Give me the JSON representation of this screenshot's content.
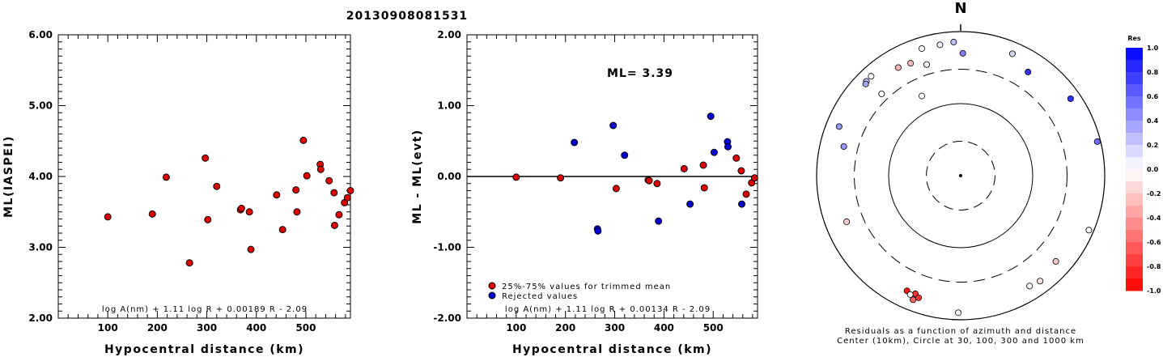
{
  "event_id": "20130908081531",
  "north_label": "N",
  "chart_data": [
    {
      "type": "scatter",
      "ylabel": "ML(IASPEI)",
      "xlabel": "Hypocentral distance (km)",
      "xlim": [
        0,
        590
      ],
      "ylim": [
        2.0,
        6.0
      ],
      "xticks": [
        100,
        200,
        300,
        400,
        500
      ],
      "ytick_labels": [
        "2.00",
        "3.00",
        "4.00",
        "5.00",
        "6.00"
      ],
      "formula": "log A(nm) + 1.11 log R + 0.00189 R - 2.09",
      "series": [
        {
          "color": "#e00000",
          "points": [
            [
              100,
              3.43
            ],
            [
              190,
              3.47
            ],
            [
              218,
              3.99
            ],
            [
              265,
              2.78
            ],
            [
              297,
              4.26
            ],
            [
              302,
              3.39
            ],
            [
              320,
              3.86
            ],
            [
              368,
              3.53
            ],
            [
              370,
              3.55
            ],
            [
              386,
              3.5
            ],
            [
              389,
              2.97
            ],
            [
              441,
              3.74
            ],
            [
              453,
              3.25
            ],
            [
              480,
              3.81
            ],
            [
              482,
              3.5
            ],
            [
              495,
              4.51
            ],
            [
              502,
              4.01
            ],
            [
              529,
              4.17
            ],
            [
              530,
              4.1
            ],
            [
              547,
              3.94
            ],
            [
              558,
              3.31
            ],
            [
              557,
              3.77
            ],
            [
              567,
              3.46
            ],
            [
              578,
              3.63
            ],
            [
              584,
              3.7
            ],
            [
              592,
              3.8
            ]
          ]
        }
      ]
    },
    {
      "type": "scatter",
      "ylabel": "ML - ML(evt)",
      "xlabel": "Hypocentral distance (km)",
      "xlim": [
        0,
        590
      ],
      "ylim": [
        -2.0,
        2.0
      ],
      "xticks": [
        100,
        200,
        300,
        400,
        500
      ],
      "ytick_labels": [
        "-2.00",
        "-1.00",
        "0.00",
        "1.00",
        "2.00"
      ],
      "ml_label": "ML= 3.39",
      "formula": "log A(nm) + 1.11 log R + 0.00134 R - 2.09",
      "legend": [
        {
          "label": "25%-75% values for trimmed mean",
          "color": "#e00000"
        },
        {
          "label": "Rejected values",
          "color": "#0000d0"
        }
      ],
      "series": [
        {
          "name": "25%-75% values for trimmed mean",
          "color": "#e00000",
          "points": [
            [
              100,
              -0.01
            ],
            [
              190,
              -0.02
            ],
            [
              303,
              -0.17
            ],
            [
              368,
              -0.05
            ],
            [
              370,
              -0.06
            ],
            [
              386,
              -0.1
            ],
            [
              441,
              0.11
            ],
            [
              480,
              0.16
            ],
            [
              482,
              -0.16
            ],
            [
              547,
              0.26
            ],
            [
              557,
              0.08
            ],
            [
              567,
              -0.25
            ],
            [
              578,
              -0.09
            ],
            [
              584,
              -0.02
            ]
          ]
        },
        {
          "name": "Rejected values",
          "color": "#0000d0",
          "points": [
            [
              218,
              0.48
            ],
            [
              265,
              -0.74
            ],
            [
              266,
              -0.77
            ],
            [
              297,
              0.72
            ],
            [
              320,
              0.3
            ],
            [
              389,
              -0.63
            ],
            [
              453,
              -0.39
            ],
            [
              495,
              0.85
            ],
            [
              502,
              0.34
            ],
            [
              529,
              0.49
            ],
            [
              530,
              0.42
            ],
            [
              558,
              -0.39
            ]
          ]
        }
      ]
    },
    {
      "type": "polar",
      "caption_line1": "Residuals as a function of azimuth and distance",
      "caption_line2": "Center (10km), Circle at 30, 100, 300 and 1000 km",
      "colorbar_title": "Res",
      "colorbar_ticks": [
        "1.0",
        "0.8",
        "0.6",
        "0.4",
        "0.2",
        "0.0",
        "-0.2",
        "-0.4",
        "-0.6",
        "-0.8",
        "-1.0"
      ],
      "points": [
        {
          "az": 343,
          "dist_km": 700,
          "res": 0.0
        },
        {
          "az": 351,
          "dist_km": 690,
          "res": 0.05
        },
        {
          "az": 357,
          "dist_km": 720,
          "res": 0.25
        },
        {
          "az": 1,
          "dist_km": 500,
          "res": 0.5
        },
        {
          "az": 23,
          "dist_km": 690,
          "res": 0.15
        },
        {
          "az": 33,
          "dist_km": 520,
          "res": 0.8
        },
        {
          "az": 55,
          "dist_km": 730,
          "res": 0.8
        },
        {
          "az": 76,
          "dist_km": 900,
          "res": 0.55
        },
        {
          "az": 330,
          "dist_km": 540,
          "res": -0.3
        },
        {
          "az": 336,
          "dist_km": 510,
          "res": -0.25
        },
        {
          "az": 343,
          "dist_km": 410,
          "res": -0.05
        },
        {
          "az": 318,
          "dist_km": 720,
          "res": 0.0
        },
        {
          "az": 315,
          "dist_km": 710,
          "res": 0.25
        },
        {
          "az": 314,
          "dist_km": 680,
          "res": 0.35
        },
        {
          "az": 316,
          "dist_km": 380,
          "res": 0.0
        },
        {
          "az": 334,
          "dist_km": 170,
          "res": 0.0
        },
        {
          "az": 292,
          "dist_km": 660,
          "res": 0.4
        },
        {
          "az": 284,
          "dist_km": 470,
          "res": 0.4
        },
        {
          "az": 248,
          "dist_km": 510,
          "res": -0.2
        },
        {
          "az": 205,
          "dist_km": 580,
          "res": -0.9
        },
        {
          "az": 201,
          "dist_km": 570,
          "res": -0.8
        },
        {
          "az": 203,
          "dist_km": 620,
          "res": 0.0
        },
        {
          "az": 199,
          "dist_km": 620,
          "res": -0.8
        },
        {
          "az": 201,
          "dist_km": 700,
          "res": -0.6
        },
        {
          "az": 181,
          "dist_km": 800,
          "res": 0.0
        },
        {
          "az": 132,
          "dist_km": 600,
          "res": -0.2
        },
        {
          "az": 113,
          "dist_km": 860,
          "res": 0.0
        },
        {
          "az": 148,
          "dist_km": 640,
          "res": 0.0
        },
        {
          "az": 143,
          "dist_km": 680,
          "res": -0.1
        }
      ]
    }
  ]
}
